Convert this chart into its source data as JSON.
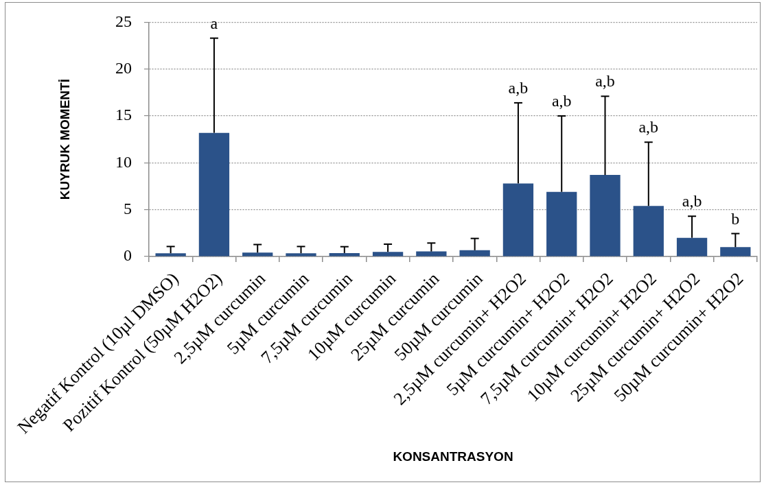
{
  "chart_data": {
    "type": "bar",
    "xlabel": "KONSANTRASYON",
    "ylabel": "KUYRUK MOMENTİ",
    "categories": [
      "Negatif Kontrol (10µl DMSO)",
      "Pozitif Kontrol (50µM H2O2)",
      "2,5µM curcumin",
      "5µM curcumin",
      "7,5µM curcumin",
      "10µM curcumin",
      "25µM curcumin",
      "50µM curcumin",
      "2,5µM curcumin+ H2O2",
      "5µM curcumin+ H2O2",
      "7,5µM curcumin+ H2O2",
      "10µM curcumin+ H2O2",
      "25µM curcumin+ H2O2",
      "50µM curcumin+ H2O2"
    ],
    "values": [
      0.35,
      13.2,
      0.42,
      0.35,
      0.37,
      0.5,
      0.54,
      0.67,
      7.8,
      6.9,
      8.7,
      5.4,
      2.0,
      1.0
    ],
    "errors": [
      [
        0.35,
        1.07
      ],
      [
        13.2,
        23.3
      ],
      [
        0.42,
        1.28
      ],
      [
        0.35,
        1.07
      ],
      [
        0.37,
        1.05
      ],
      [
        0.5,
        1.32
      ],
      [
        0.54,
        1.44
      ],
      [
        0.67,
        1.93
      ],
      [
        7.8,
        16.4
      ],
      [
        6.9,
        15.0
      ],
      [
        8.7,
        17.1
      ],
      [
        5.4,
        12.2
      ],
      [
        2.0,
        4.3
      ],
      [
        1.0,
        2.45
      ]
    ],
    "color": "#2b5289",
    "ylim": [
      0,
      25
    ],
    "yticks": [
      0,
      5,
      10,
      15,
      20,
      25
    ],
    "grid": "y",
    "annotations": [
      "a",
      "a,b",
      "a,b",
      "a,b",
      "a,b",
      "a,b",
      "b"
    ]
  }
}
